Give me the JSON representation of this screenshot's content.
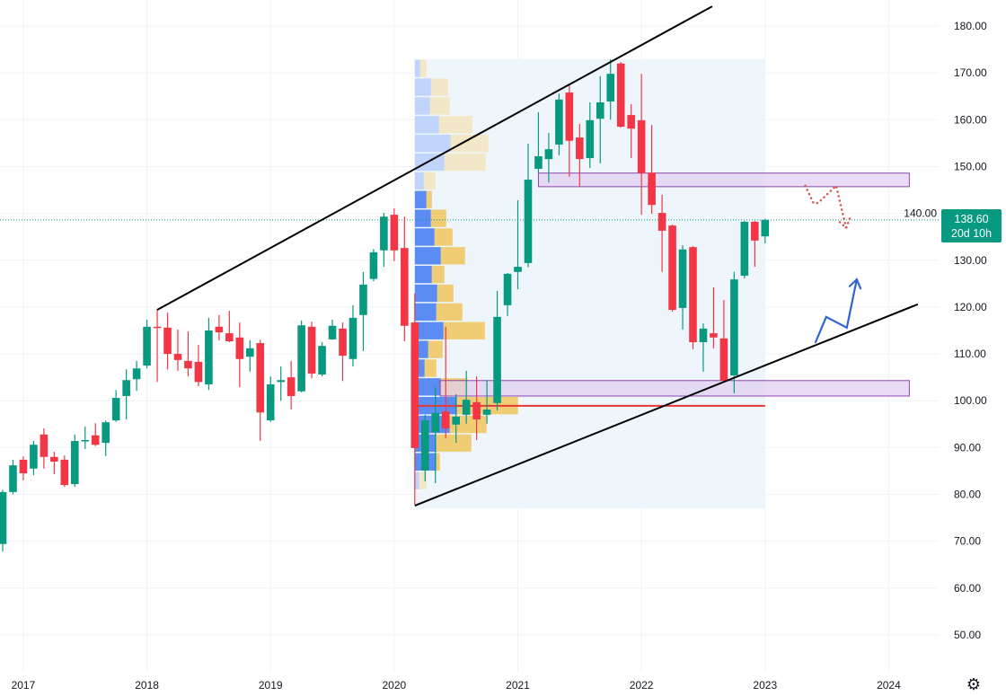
{
  "chart_data": {
    "type": "candlestick",
    "interval": "monthly",
    "colors": {
      "up": "#089981",
      "down": "#f23645",
      "grid": "#f0f3fa",
      "last_price_line": "#089981",
      "profile_up": "#5b8cf3",
      "profile_down": "#f0cd74",
      "profile_up_outside": "#c1d4fb",
      "profile_down_outside": "#f2e8c8",
      "profile_bg": "#eef6fc",
      "zone_fill": "#e1d0f0",
      "zone_border": "#8e44ad",
      "support_line": "#e53935",
      "scenario_down": "#d9534f",
      "scenario_up": "#2f63d6",
      "trendline": "#000000"
    },
    "ylim": [
      45,
      185
    ],
    "y_ticks": [
      "180.00",
      "170.00",
      "160.00",
      "150.00",
      "140.00",
      "130.00",
      "120.00",
      "110.00",
      "100.00",
      "90.00",
      "80.00",
      "70.00",
      "60.00",
      "50.00"
    ],
    "x_ticks": [
      "2017",
      "2018",
      "2019",
      "2020",
      "2021",
      "2022",
      "2023",
      "2024"
    ],
    "grid": true,
    "last_price": {
      "value": "138.60",
      "countdown": "20d 10h"
    },
    "candles": [
      [
        "2016-11",
        69.4,
        81,
        67.8,
        80.5
      ],
      [
        "2016-12",
        80.5,
        87.4,
        80,
        86.2
      ],
      [
        "2017-01",
        87.4,
        88.1,
        83,
        84.5
      ],
      [
        "2017-02",
        85.5,
        91.4,
        84.1,
        90.6
      ],
      [
        "2017-03",
        92.8,
        94.1,
        85.5,
        88
      ],
      [
        "2017-04",
        88,
        89.1,
        84.3,
        87
      ],
      [
        "2017-05",
        87.4,
        88.3,
        81.6,
        82
      ],
      [
        "2017-06",
        82.2,
        92.8,
        81.6,
        91.4
      ],
      [
        "2017-07",
        91.4,
        94.5,
        89.7,
        91.6
      ],
      [
        "2017-08",
        92.6,
        95.2,
        90.3,
        90.6
      ],
      [
        "2017-09",
        91,
        95.8,
        88.2,
        95.4
      ],
      [
        "2017-10",
        95.8,
        102.3,
        95.5,
        100.6
      ],
      [
        "2017-11",
        101,
        106.7,
        96,
        104.4
      ],
      [
        "2017-12",
        104.6,
        108.5,
        102.1,
        106.9
      ],
      [
        "2018-01",
        107.5,
        117.3,
        106.9,
        115.8
      ],
      [
        "2018-02",
        115.8,
        119.6,
        104,
        115.6
      ],
      [
        "2018-03",
        115.6,
        118.8,
        106.7,
        110
      ],
      [
        "2018-04",
        110,
        115.2,
        106.4,
        108.7
      ],
      [
        "2018-05",
        108.5,
        114.8,
        105.2,
        106.9
      ],
      [
        "2018-06",
        108.3,
        111.9,
        103.1,
        104
      ],
      [
        "2018-07",
        103.5,
        117.7,
        102.3,
        115
      ],
      [
        "2018-08",
        115.8,
        118.3,
        112.9,
        114.6
      ],
      [
        "2018-09",
        114.4,
        119.2,
        112.5,
        112.7
      ],
      [
        "2018-10",
        113.5,
        116.7,
        102.9,
        108.9
      ],
      [
        "2018-11",
        109.4,
        112.9,
        106.2,
        111.2
      ],
      [
        "2018-12",
        112.3,
        113,
        91.4,
        97.5
      ],
      [
        "2019-01",
        95.8,
        105.2,
        95.5,
        103.5
      ],
      [
        "2019-02",
        104,
        107.3,
        100,
        104.4
      ],
      [
        "2019-03",
        105,
        108.5,
        98.1,
        101
      ],
      [
        "2019-04",
        102,
        117.1,
        101.8,
        116.1
      ],
      [
        "2019-05",
        115.8,
        116.9,
        104.8,
        105.8
      ],
      [
        "2019-06",
        105.6,
        112.5,
        105.2,
        111.7
      ],
      [
        "2019-07",
        113.1,
        117.3,
        113,
        116
      ],
      [
        "2019-08",
        115.4,
        116.7,
        104.2,
        109.6
      ],
      [
        "2019-09",
        108.9,
        120.4,
        107.3,
        117.7
      ],
      [
        "2019-10",
        118.3,
        127.5,
        110.6,
        124.8
      ],
      [
        "2019-11",
        126,
        132.4,
        125.5,
        131.7
      ],
      [
        "2019-12",
        132.1,
        140.1,
        128.6,
        139.3
      ],
      [
        "2020-01",
        139.7,
        141.1,
        129.8,
        132.1
      ],
      [
        "2020-02",
        132.6,
        139.3,
        112.7,
        116
      ],
      [
        "2020-03",
        116.7,
        122.9,
        77.8,
        89.9
      ],
      [
        "2020-04",
        85.1,
        97,
        82.8,
        95.8
      ],
      [
        "2020-05",
        93.3,
        102.9,
        82.4,
        97.4
      ],
      [
        "2020-06",
        97.7,
        115.8,
        92,
        94.1
      ],
      [
        "2020-07",
        94.9,
        101.4,
        91,
        96.6
      ],
      [
        "2020-08",
        97,
        106.4,
        95.1,
        100.2
      ],
      [
        "2020-09",
        99.7,
        105.2,
        91.6,
        96
      ],
      [
        "2020-10",
        97,
        104.4,
        95.1,
        98.1
      ],
      [
        "2020-11",
        99.5,
        123.4,
        97.9,
        117.9
      ],
      [
        "2020-12",
        120.4,
        127.3,
        118.1,
        127.1
      ],
      [
        "2021-01",
        127.5,
        142.8,
        123.8,
        128.6
      ],
      [
        "2021-02",
        129.4,
        154.9,
        128.5,
        147.2
      ],
      [
        "2021-03",
        149.5,
        161.6,
        148.6,
        152.2
      ],
      [
        "2021-04",
        151.6,
        157.2,
        146.6,
        153.7
      ],
      [
        "2021-05",
        154.7,
        165.6,
        152.4,
        164.3
      ],
      [
        "2021-06",
        165.8,
        167.3,
        147.8,
        155.5
      ],
      [
        "2021-07",
        156.2,
        159.1,
        145.7,
        151.6
      ],
      [
        "2021-08",
        151.8,
        163.7,
        149.7,
        159.9
      ],
      [
        "2021-09",
        160.2,
        169.3,
        150.7,
        163.7
      ],
      [
        "2021-10",
        163.9,
        172.9,
        160,
        169.8
      ],
      [
        "2021-11",
        172,
        172.3,
        158.3,
        158.5
      ],
      [
        "2021-12",
        161,
        163.3,
        151.8,
        158.1
      ],
      [
        "2022-01",
        159.9,
        169.8,
        139.7,
        148.6
      ],
      [
        "2022-02",
        148.7,
        158.9,
        139.9,
        141.8
      ],
      [
        "2022-03",
        140.1,
        144,
        127.5,
        136.3
      ],
      [
        "2022-04",
        137.4,
        137.6,
        119,
        119.4
      ],
      [
        "2022-05",
        119.8,
        133.2,
        115.2,
        132.3
      ],
      [
        "2022-06",
        132.8,
        133,
        111,
        112.5
      ],
      [
        "2022-07",
        112.5,
        116.5,
        106.2,
        115.4
      ],
      [
        "2022-08",
        114.4,
        124.2,
        111.2,
        113.5
      ],
      [
        "2022-09",
        113.3,
        121.5,
        104.1,
        104.3
      ],
      [
        "2022-10",
        105.4,
        127.5,
        101.6,
        125.9
      ],
      [
        "2022-11",
        126.7,
        138.4,
        126.1,
        138.2
      ],
      [
        "2022-12",
        138.2,
        138.4,
        128.6,
        134.2
      ],
      [
        "2023-01",
        135.1,
        138.8,
        133.6,
        138.6
      ]
    ],
    "volume_profile": {
      "from": "2020-03-01",
      "to": "2023-01-01",
      "price_high": 172.9,
      "price_low": 77,
      "row_size": 4.0,
      "rows": [
        {
          "up": 6,
          "down": 7,
          "in_value_area": false
        },
        {
          "up": 18,
          "down": 19,
          "in_value_area": false
        },
        {
          "up": 17,
          "down": 22,
          "in_value_area": false
        },
        {
          "up": 27,
          "down": 37,
          "in_value_area": false
        },
        {
          "up": 40,
          "down": 42,
          "in_value_area": false
        },
        {
          "up": 33,
          "down": 46,
          "in_value_area": false
        },
        {
          "up": 10,
          "down": 13,
          "in_value_area": false
        },
        {
          "up": 13,
          "down": 6,
          "in_value_area": true
        },
        {
          "up": 18,
          "down": 17,
          "in_value_area": true
        },
        {
          "up": 22,
          "down": 20,
          "in_value_area": true
        },
        {
          "up": 29,
          "down": 27,
          "in_value_area": true
        },
        {
          "up": 19,
          "down": 14,
          "in_value_area": true
        },
        {
          "up": 25,
          "down": 18,
          "in_value_area": true
        },
        {
          "up": 24,
          "down": 29,
          "in_value_area": true
        },
        {
          "up": 32,
          "down": 46,
          "in_value_area": true
        },
        {
          "up": 15,
          "down": 16,
          "in_value_area": true
        },
        {
          "up": 11,
          "down": 13,
          "in_value_area": true
        },
        {
          "up": 29,
          "down": 30,
          "in_value_area": true
        },
        {
          "up": 47,
          "down": 68,
          "in_value_area": true
        },
        {
          "up": 39,
          "down": 41,
          "in_value_area": true
        },
        {
          "up": 24,
          "down": 39,
          "in_value_area": true
        },
        {
          "up": 24,
          "down": 4,
          "in_value_area": true
        },
        {
          "up": 5,
          "down": 8,
          "in_value_area": false
        }
      ]
    },
    "drawings": {
      "trendlines": [
        {
          "from": [
            "2018-02-01",
            119.4
          ],
          "to": [
            "2022-07-27",
            184.2
          ]
        },
        {
          "from": [
            "2020-03-01",
            77.6
          ],
          "to": [
            "2024-03-26",
            120.6
          ]
        }
      ],
      "zones": [
        {
          "from": "2021-03-01",
          "to": "2024-03-01",
          "top": 148.6,
          "bottom": 145.7
        },
        {
          "from": "2020-05-15",
          "to": "2024-03-01",
          "top": 104.3,
          "bottom": 101.0
        }
      ],
      "horizontal_line": {
        "from": "2020-03-10",
        "to": "2023-01-01",
        "price": 98.9
      },
      "scenario_down_path": [
        [
          "2023-04-28",
          145.9
        ],
        [
          "2023-05-22",
          142.2
        ],
        [
          "2023-06-05",
          142.2
        ],
        [
          "2023-07-28",
          145.9
        ],
        [
          "2023-08-27",
          136.9
        ]
      ],
      "scenario_up_path": [
        [
          "2023-05-28",
          112.5
        ],
        [
          "2023-06-29",
          117.9
        ],
        [
          "2023-08-29",
          115.6
        ],
        [
          "2023-09-28",
          125.9
        ]
      ]
    }
  },
  "ui": {
    "settings_icon": "gear-icon"
  }
}
